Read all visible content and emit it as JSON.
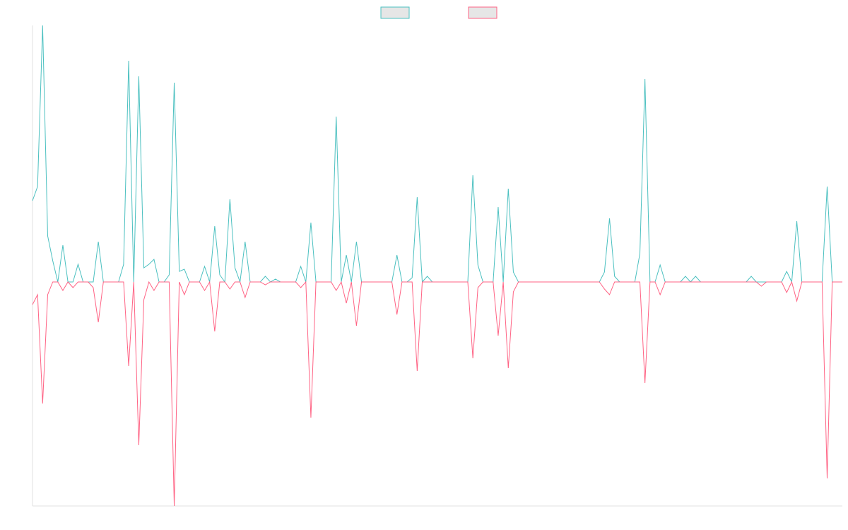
{
  "chart_data": {
    "type": "line",
    "ylim": [
      -317,
      363
    ],
    "legend": "top",
    "series": [
      {
        "color": "#4bc0c0",
        "values": [
          115,
          135,
          363,
          65,
          30,
          0,
          52,
          0,
          0,
          25,
          0,
          0,
          0,
          57,
          0,
          0,
          0,
          0,
          25,
          313,
          0,
          291,
          20,
          25,
          32,
          0,
          0,
          10,
          282,
          15,
          18,
          0,
          0,
          0,
          22,
          0,
          79,
          10,
          0,
          117,
          20,
          0,
          57,
          0,
          0,
          0,
          8,
          0,
          4,
          0,
          0,
          0,
          0,
          22,
          0,
          84,
          0,
          0,
          0,
          0,
          234,
          0,
          38,
          0,
          57,
          0,
          0,
          0,
          0,
          0,
          0,
          0,
          38,
          0,
          0,
          6,
          120,
          0,
          8,
          0,
          0,
          0,
          0,
          0,
          0,
          0,
          0,
          151,
          24,
          0,
          0,
          0,
          106,
          0,
          132,
          14,
          0,
          0,
          0,
          0,
          0,
          0,
          0,
          0,
          0,
          0,
          0,
          0,
          0,
          0,
          0,
          0,
          0,
          14,
          90,
          8,
          0,
          0,
          0,
          0,
          40,
          287,
          0,
          0,
          24,
          0,
          0,
          0,
          0,
          8,
          0,
          8,
          0,
          0,
          0,
          0,
          0,
          0,
          0,
          0,
          0,
          0,
          8,
          0,
          0,
          0,
          0,
          0,
          0,
          15,
          0,
          86,
          0,
          0,
          0,
          0,
          0,
          135,
          0,
          0,
          0
        ]
      },
      {
        "color": "#ff6384",
        "values": [
          -32,
          -18,
          -172,
          -18,
          0,
          0,
          -12,
          0,
          -8,
          0,
          0,
          0,
          -8,
          -57,
          0,
          0,
          0,
          0,
          0,
          -119,
          0,
          -231,
          -25,
          0,
          -12,
          0,
          0,
          0,
          -317,
          0,
          -18,
          0,
          0,
          0,
          -12,
          0,
          -70,
          0,
          0,
          -10,
          0,
          0,
          -22,
          0,
          0,
          0,
          -4,
          0,
          0,
          0,
          0,
          0,
          0,
          -8,
          0,
          -192,
          0,
          0,
          0,
          0,
          -12,
          0,
          -30,
          0,
          -62,
          0,
          0,
          0,
          0,
          0,
          0,
          0,
          -46,
          0,
          0,
          0,
          -126,
          0,
          0,
          0,
          0,
          0,
          0,
          0,
          0,
          0,
          0,
          -108,
          -8,
          0,
          0,
          0,
          -76,
          0,
          -122,
          -14,
          0,
          0,
          0,
          0,
          0,
          0,
          0,
          0,
          0,
          0,
          0,
          0,
          0,
          0,
          0,
          0,
          0,
          -10,
          -18,
          0,
          0,
          0,
          0,
          0,
          0,
          -143,
          0,
          0,
          -18,
          0,
          0,
          0,
          0,
          0,
          0,
          0,
          0,
          0,
          0,
          0,
          0,
          0,
          0,
          0,
          0,
          0,
          0,
          0,
          -6,
          0,
          0,
          0,
          0,
          -15,
          0,
          -27,
          0,
          0,
          0,
          0,
          0,
          -278,
          0,
          0,
          0
        ]
      }
    ]
  }
}
